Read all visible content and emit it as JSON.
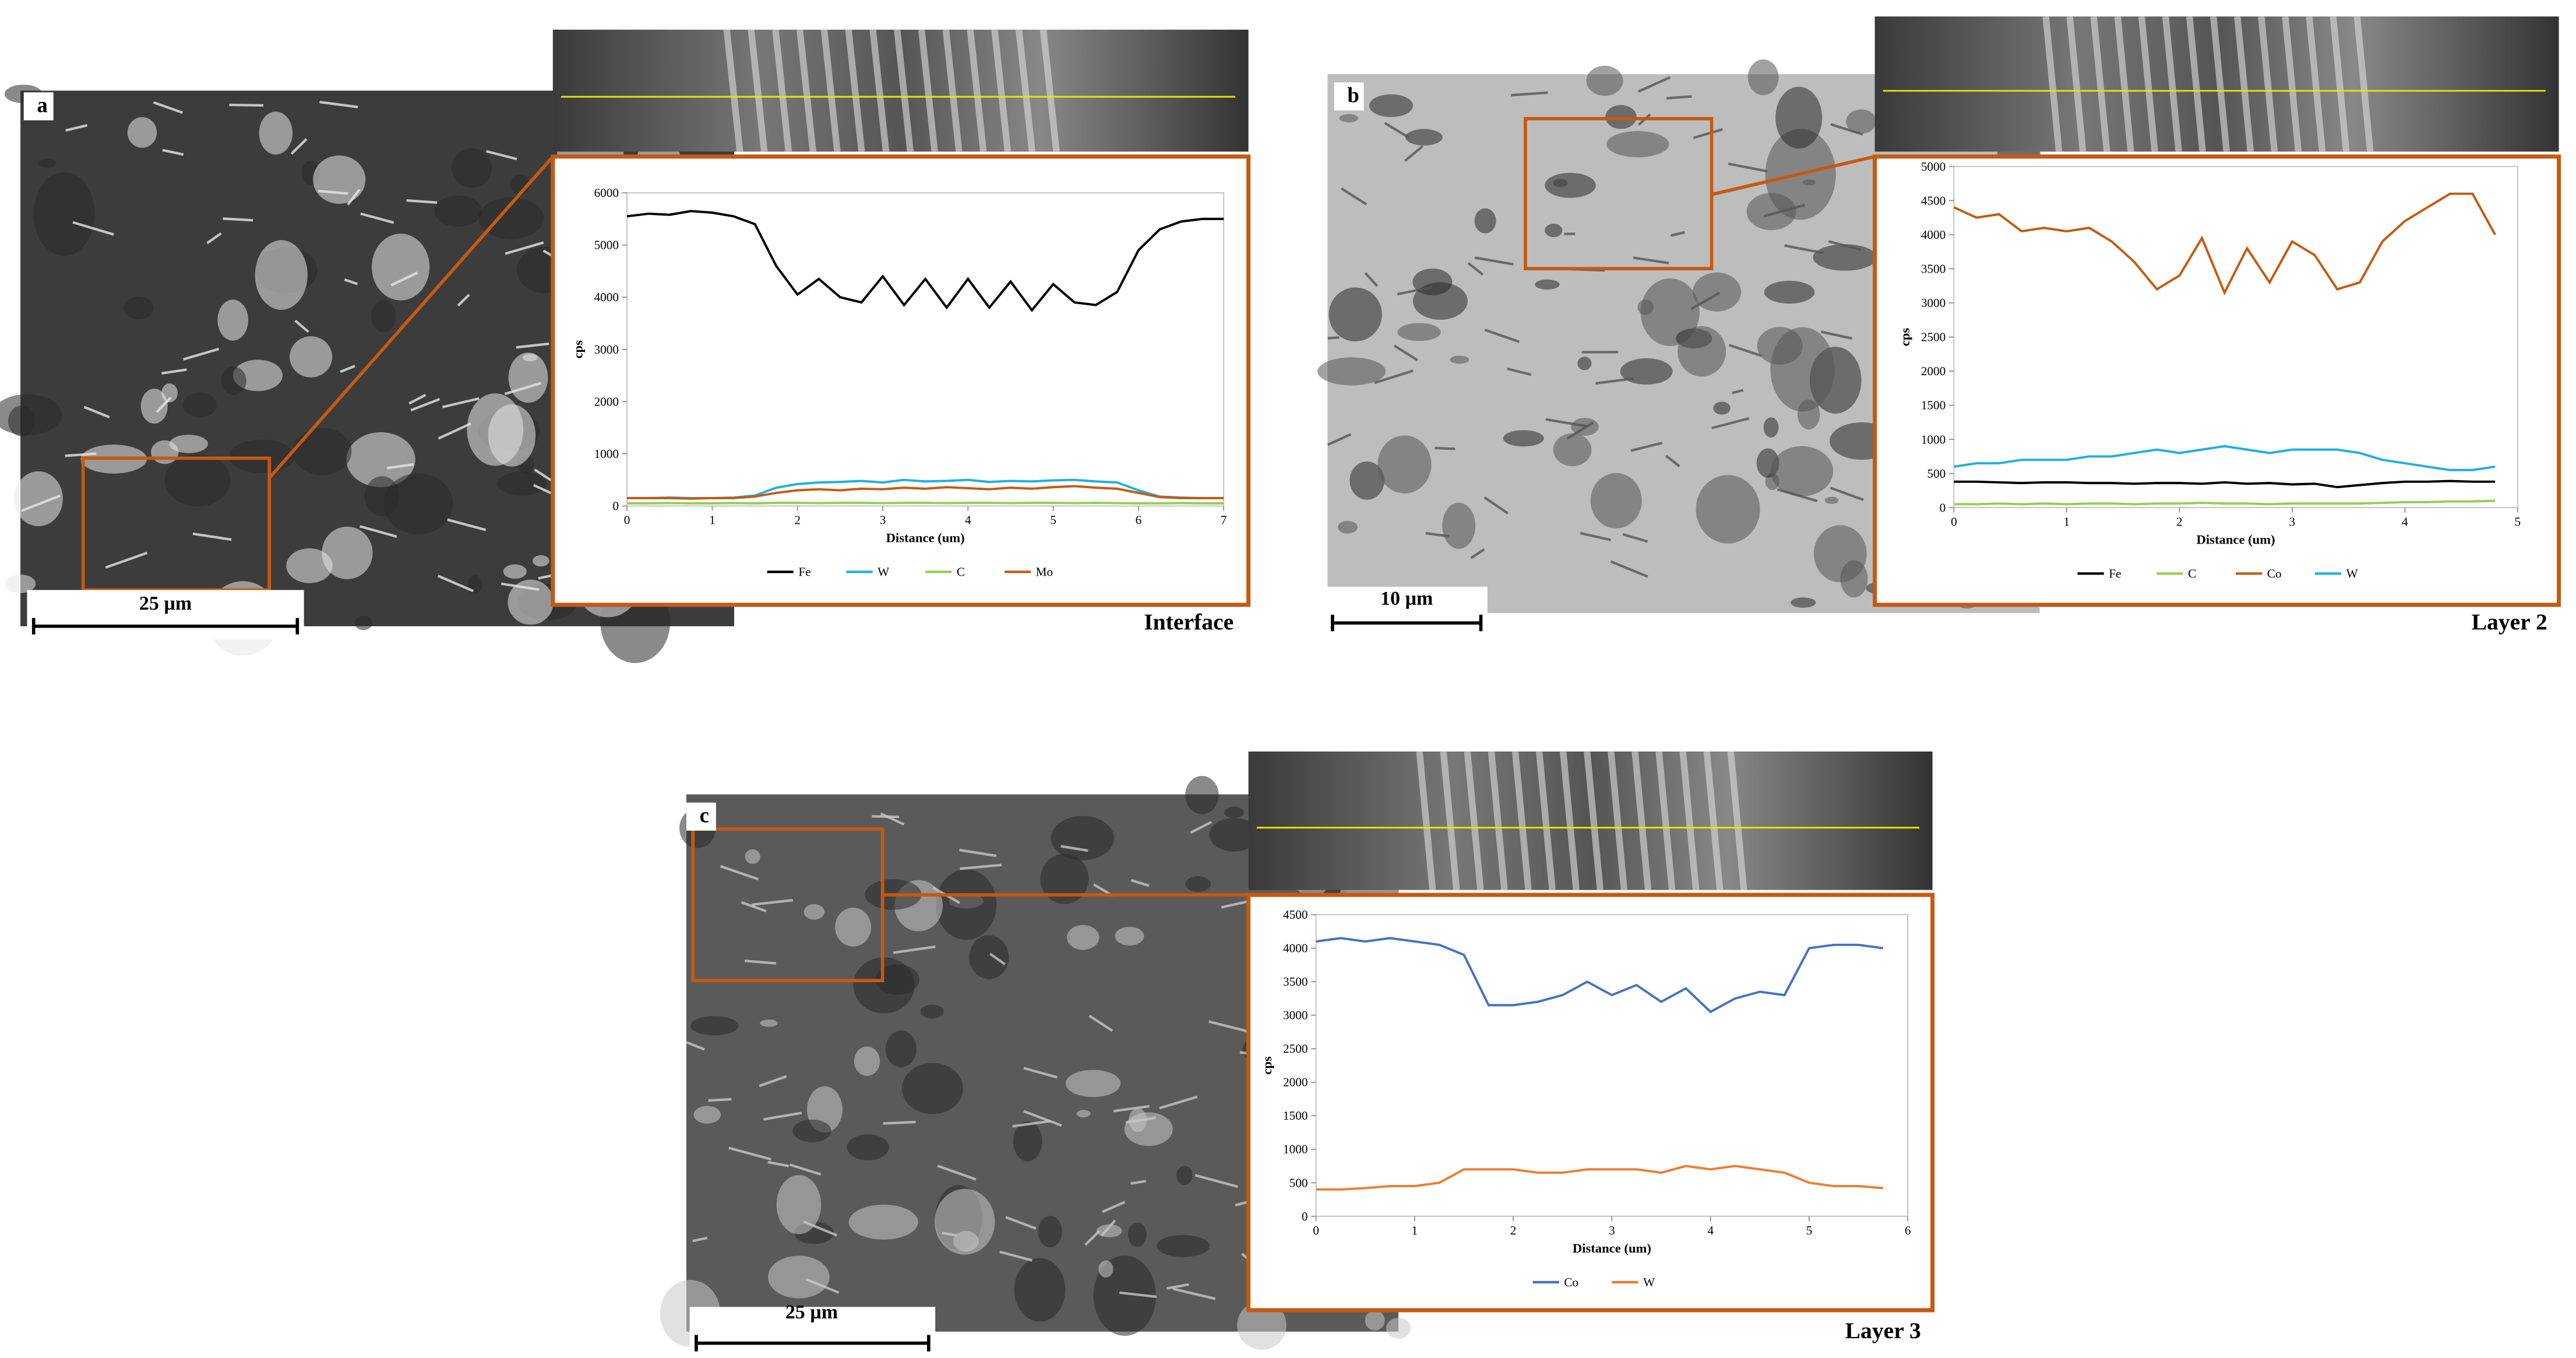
{
  "chart_data": [
    {
      "type": "line",
      "panel": "a",
      "caption": "Interface",
      "scale_bar": "25 µm",
      "ylabel": "cps",
      "xlabel": "Distance (um)",
      "x": [
        0,
        0.25,
        0.5,
        0.75,
        1,
        1.25,
        1.5,
        1.75,
        2,
        2.25,
        2.5,
        2.75,
        3,
        3.25,
        3.5,
        3.75,
        4,
        4.25,
        4.5,
        4.75,
        5,
        5.25,
        5.5,
        5.75,
        6,
        6.25,
        6.5,
        6.75,
        7
      ],
      "xlim": [
        0,
        7
      ],
      "xticks": [
        0,
        1,
        2,
        3,
        4,
        5,
        6,
        7
      ],
      "ylim": [
        0,
        6000
      ],
      "yticks": [
        0,
        1000,
        2000,
        3000,
        4000,
        5000,
        6000
      ],
      "legend": "bottom",
      "series": [
        {
          "name": "Fe",
          "color": "#000000",
          "values": [
            5550,
            5600,
            5580,
            5650,
            5620,
            5550,
            5400,
            4600,
            4050,
            4350,
            4000,
            3900,
            4400,
            3850,
            4350,
            3800,
            4350,
            3800,
            4300,
            3750,
            4250,
            3900,
            3850,
            4100,
            4900,
            5300,
            5450,
            5500,
            5500
          ]
        },
        {
          "name": "W",
          "color": "#1fb0e0",
          "values": [
            150,
            150,
            160,
            150,
            150,
            160,
            200,
            350,
            420,
            450,
            460,
            480,
            450,
            500,
            470,
            480,
            500,
            460,
            480,
            470,
            490,
            500,
            470,
            450,
            300,
            180,
            160,
            150,
            150
          ]
        },
        {
          "name": "C",
          "color": "#92d050",
          "values": [
            50,
            50,
            55,
            50,
            50,
            55,
            50,
            60,
            60,
            55,
            60,
            60,
            55,
            60,
            60,
            55,
            60,
            60,
            55,
            60,
            60,
            55,
            60,
            55,
            50,
            50,
            55,
            50,
            50
          ]
        },
        {
          "name": "Mo",
          "color": "#c55a11",
          "values": [
            150,
            150,
            150,
            140,
            150,
            150,
            180,
            250,
            300,
            320,
            300,
            330,
            320,
            350,
            330,
            360,
            340,
            320,
            350,
            330,
            360,
            380,
            350,
            330,
            250,
            170,
            150,
            150,
            150
          ]
        }
      ]
    },
    {
      "type": "line",
      "panel": "b",
      "caption": "Layer 2",
      "scale_bar": "10 µm",
      "ylabel": "cps",
      "xlabel": "Distance (um)",
      "x": [
        0,
        0.2,
        0.4,
        0.6,
        0.8,
        1,
        1.2,
        1.4,
        1.6,
        1.8,
        2,
        2.2,
        2.4,
        2.6,
        2.8,
        3,
        3.2,
        3.4,
        3.6,
        3.8,
        4,
        4.2,
        4.4,
        4.6,
        4.8
      ],
      "xlim": [
        0,
        5
      ],
      "xticks": [
        0,
        1,
        2,
        3,
        4,
        5
      ],
      "ylim": [
        0,
        5000
      ],
      "yticks": [
        0,
        500,
        1000,
        1500,
        2000,
        2500,
        3000,
        3500,
        4000,
        4500,
        5000
      ],
      "legend": "bottom",
      "series": [
        {
          "name": "Fe",
          "color": "#000000",
          "values": [
            380,
            380,
            370,
            360,
            370,
            370,
            360,
            360,
            350,
            360,
            360,
            350,
            370,
            350,
            360,
            340,
            350,
            300,
            330,
            360,
            380,
            380,
            390,
            380,
            380
          ]
        },
        {
          "name": "C",
          "color": "#92d050",
          "values": [
            50,
            50,
            60,
            50,
            60,
            50,
            60,
            60,
            50,
            60,
            60,
            70,
            60,
            60,
            50,
            60,
            60,
            60,
            60,
            70,
            80,
            80,
            90,
            90,
            100
          ]
        },
        {
          "name": "Co",
          "color": "#c55a11",
          "values": [
            4400,
            4250,
            4300,
            4050,
            4100,
            4050,
            4100,
            3900,
            3600,
            3200,
            3400,
            3950,
            3150,
            3800,
            3300,
            3900,
            3700,
            3200,
            3300,
            3900,
            4200,
            4400,
            4600,
            4600,
            4000
          ]
        },
        {
          "name": "W",
          "color": "#1fb0e0",
          "values": [
            600,
            650,
            650,
            700,
            700,
            700,
            750,
            750,
            800,
            850,
            800,
            850,
            900,
            850,
            800,
            850,
            850,
            850,
            800,
            700,
            650,
            600,
            550,
            550,
            600
          ]
        }
      ]
    },
    {
      "type": "line",
      "panel": "c",
      "caption": "Layer 3",
      "scale_bar": "25 µm",
      "ylabel": "cps",
      "xlabel": "Distance (um)",
      "x": [
        0,
        0.25,
        0.5,
        0.75,
        1,
        1.25,
        1.5,
        1.75,
        2,
        2.25,
        2.5,
        2.75,
        3,
        3.25,
        3.5,
        3.75,
        4,
        4.25,
        4.5,
        4.75,
        5,
        5.25,
        5.5,
        5.75
      ],
      "xlim": [
        0,
        6
      ],
      "xticks": [
        0,
        1,
        2,
        3,
        4,
        5,
        6
      ],
      "ylim": [
        0,
        4500
      ],
      "yticks": [
        0,
        500,
        1000,
        1500,
        2000,
        2500,
        3000,
        3500,
        4000,
        4500
      ],
      "legend": "bottom",
      "series": [
        {
          "name": "Co",
          "color": "#4472c4",
          "values": [
            4100,
            4150,
            4100,
            4150,
            4100,
            4050,
            3900,
            3150,
            3150,
            3200,
            3300,
            3500,
            3300,
            3450,
            3200,
            3400,
            3050,
            3250,
            3350,
            3300,
            4000,
            4050,
            4050,
            4000
          ]
        },
        {
          "name": "W",
          "color": "#ed7d31",
          "values": [
            400,
            400,
            420,
            450,
            450,
            500,
            700,
            700,
            700,
            650,
            650,
            700,
            700,
            700,
            650,
            750,
            700,
            750,
            700,
            650,
            500,
            450,
            450,
            420
          ]
        }
      ]
    }
  ]
}
